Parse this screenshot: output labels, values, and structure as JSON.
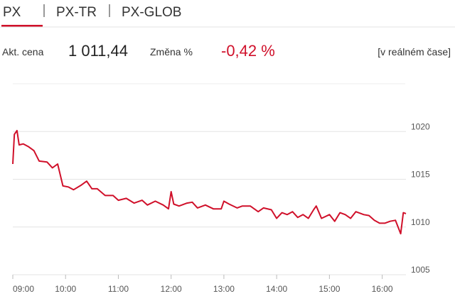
{
  "tabs": [
    "PX",
    "PX-TR",
    "PX-GLOB"
  ],
  "quote": {
    "price_label": "Akt. cena",
    "price": "1 011,44",
    "change_label": "Změna %",
    "change": "-0,42 %",
    "realtime": "[v reálném čase]"
  },
  "chart_data": {
    "type": "line",
    "x": [
      9.0,
      9.03,
      9.08,
      9.12,
      9.2,
      9.3,
      9.4,
      9.5,
      9.65,
      9.75,
      9.85,
      9.95,
      10.05,
      10.15,
      10.3,
      10.4,
      10.5,
      10.6,
      10.75,
      10.9,
      11.0,
      11.15,
      11.3,
      11.45,
      11.55,
      11.7,
      11.85,
      11.95,
      12.0,
      12.05,
      12.15,
      12.3,
      12.4,
      12.5,
      12.65,
      12.8,
      12.95,
      13.0,
      13.1,
      13.25,
      13.35,
      13.5,
      13.65,
      13.75,
      13.9,
      14.0,
      14.1,
      14.2,
      14.3,
      14.4,
      14.5,
      14.6,
      14.7,
      14.75,
      14.85,
      15.0,
      15.1,
      15.2,
      15.3,
      15.4,
      15.5,
      15.65,
      15.75,
      15.85,
      15.95,
      16.05,
      16.15,
      16.25,
      16.35,
      16.4,
      16.45
    ],
    "series": [
      {
        "name": "PX",
        "color": "#d0102a",
        "values": [
          1016.6,
          1019.7,
          1020.1,
          1018.6,
          1018.7,
          1018.4,
          1018.0,
          1016.9,
          1016.8,
          1016.2,
          1016.6,
          1014.3,
          1014.2,
          1013.9,
          1014.4,
          1014.8,
          1014.0,
          1014.0,
          1013.3,
          1013.3,
          1012.8,
          1013.0,
          1012.5,
          1012.8,
          1012.3,
          1012.7,
          1012.3,
          1011.9,
          1013.7,
          1012.4,
          1012.2,
          1012.5,
          1012.6,
          1012.0,
          1012.3,
          1011.9,
          1011.9,
          1012.7,
          1012.4,
          1012.0,
          1012.2,
          1012.2,
          1011.6,
          1012.0,
          1011.8,
          1010.9,
          1011.5,
          1011.3,
          1011.6,
          1011.0,
          1011.3,
          1010.9,
          1011.8,
          1012.2,
          1010.9,
          1011.3,
          1010.6,
          1011.5,
          1011.3,
          1010.9,
          1011.6,
          1011.3,
          1011.2,
          1010.7,
          1010.4,
          1010.4,
          1010.6,
          1010.7,
          1009.3,
          1011.5,
          1011.4
        ]
      }
    ],
    "xlim": [
      9,
      16.45
    ],
    "xticks": [
      {
        "value": 9,
        "label": "09:00"
      },
      {
        "value": 10,
        "label": "10:00"
      },
      {
        "value": 11,
        "label": "11:00"
      },
      {
        "value": 12,
        "label": "12:00"
      },
      {
        "value": 13,
        "label": "13:00"
      },
      {
        "value": 14,
        "label": "14:00"
      },
      {
        "value": 15,
        "label": "15:00"
      },
      {
        "value": 16,
        "label": "16:00"
      }
    ],
    "ylim": [
      1005,
      1025
    ],
    "yticks": [
      1005,
      1010,
      1015,
      1020
    ],
    "grid": true
  }
}
